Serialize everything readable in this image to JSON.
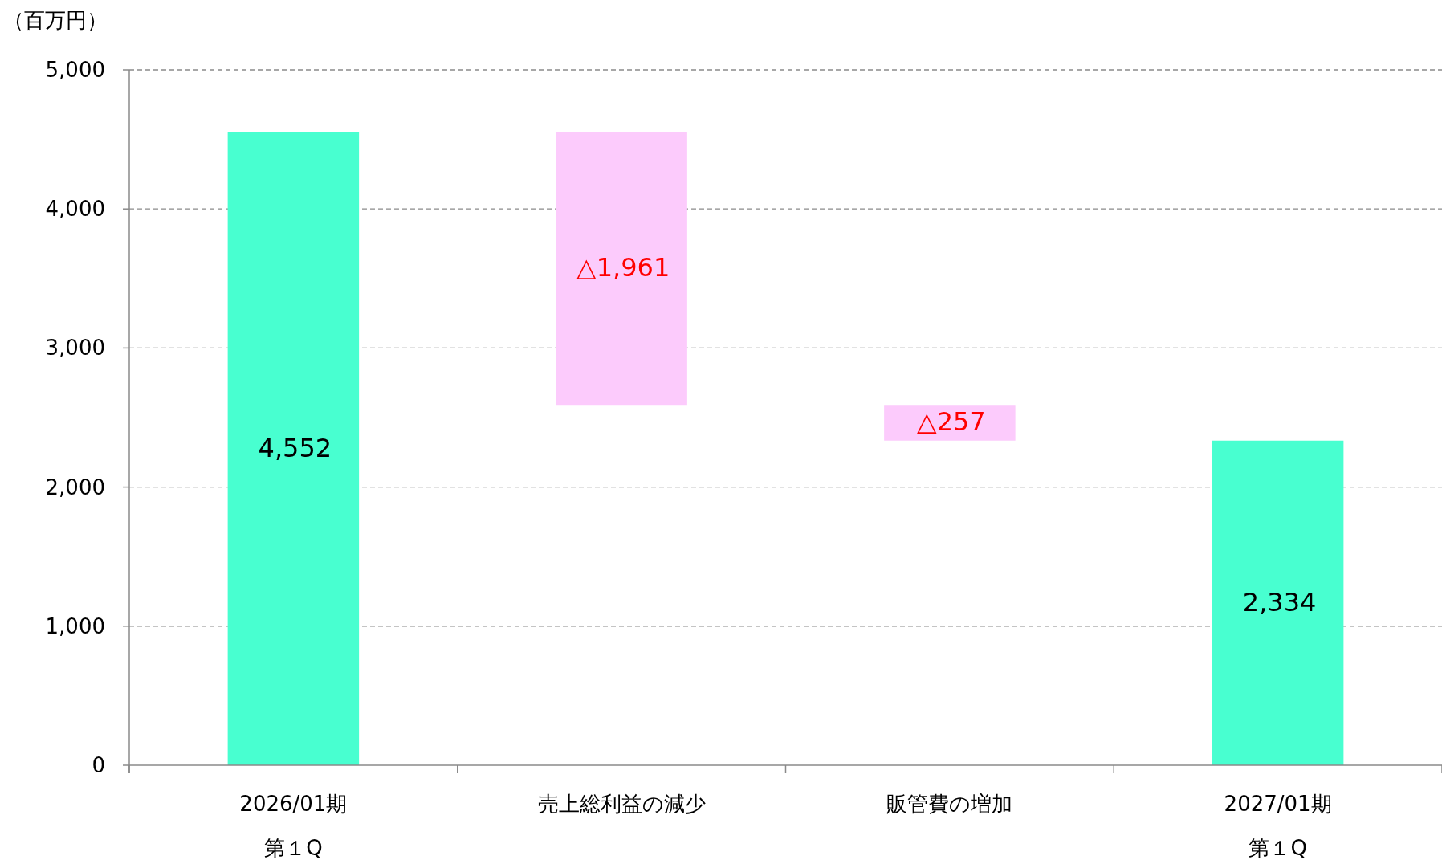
{
  "chart_data": {
    "type": "bar",
    "ylabel": "（百万円）",
    "categories": [
      "2026/01期第１Q",
      "売上総利益の減少",
      "販管費の増加",
      "2027/01期第１Q"
    ],
    "values": [
      4552,
      -1961,
      -257,
      2334
    ],
    "base": [
      0,
      4552,
      2591,
      0
    ],
    "colors": [
      "#48ffd0",
      "#fccbfc",
      "#fccbfc",
      "#48ffd0"
    ],
    "value_labels": [
      "4,552",
      "△1,961",
      "△257",
      "2,334"
    ],
    "ylim": [
      0,
      5000
    ],
    "yticks": [
      0,
      {
        "value": 1000,
        "label": "1,000"
      },
      {
        "value": 2000,
        "label": "2,000"
      },
      {
        "value": 3000,
        "label": "3,000"
      },
      {
        "value": 4000,
        "label": "4,000"
      },
      {
        "value": 5000,
        "label": "5,000"
      }
    ],
    "grid": "y"
  }
}
